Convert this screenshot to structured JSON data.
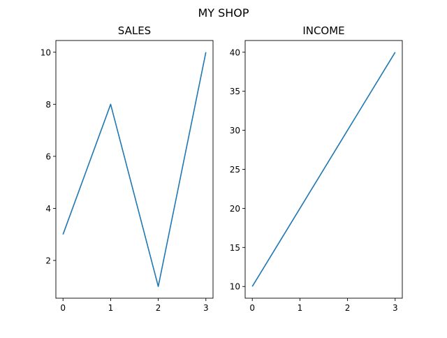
{
  "suptitle": "MY SHOP",
  "chart_data": [
    {
      "type": "line",
      "title": "SALES",
      "x": [
        0,
        1,
        2,
        3
      ],
      "y": [
        3,
        8,
        1,
        10
      ],
      "xlim": [
        -0.15,
        3.15
      ],
      "ylim": [
        0.55,
        10.45
      ],
      "xticks": [
        0,
        1,
        2,
        3
      ],
      "yticks": [
        2,
        4,
        6,
        8,
        10
      ],
      "color": "#1f77b4",
      "grid": false
    },
    {
      "type": "line",
      "title": "INCOME",
      "x": [
        0,
        1,
        2,
        3
      ],
      "y": [
        10,
        20,
        30,
        40
      ],
      "xlim": [
        -0.15,
        3.15
      ],
      "ylim": [
        8.5,
        41.5
      ],
      "xticks": [
        0,
        1,
        2,
        3
      ],
      "yticks": [
        10,
        15,
        20,
        25,
        30,
        35,
        40
      ],
      "color": "#1f77b4",
      "grid": false
    }
  ]
}
